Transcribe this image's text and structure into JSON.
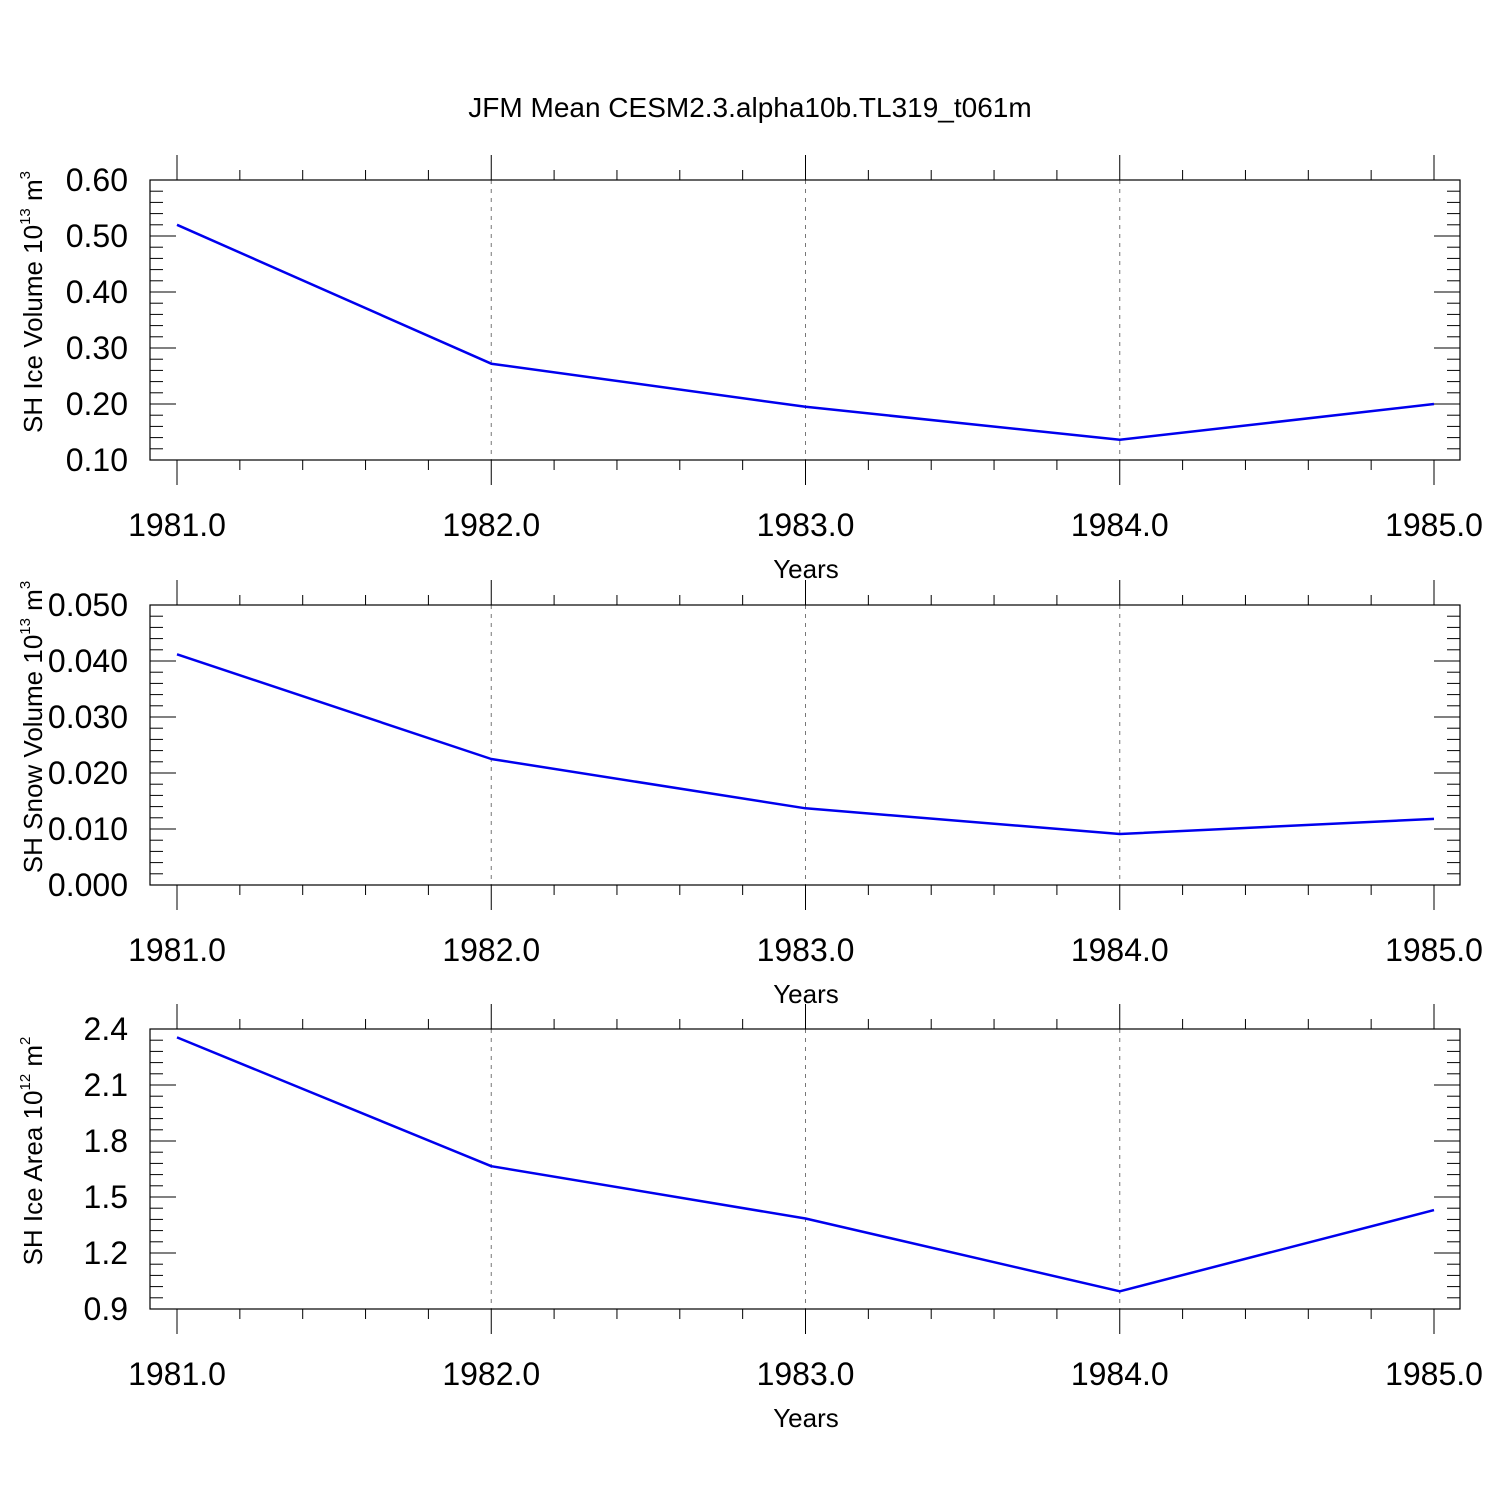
{
  "title": "JFM Mean CESM2.3.alpha10b.TL319_t061m",
  "colors": {
    "series": "#0000ee",
    "axes": "#000000",
    "grid": "#777777"
  },
  "chart_data": [
    {
      "type": "line",
      "x": [
        1981.0,
        1982.0,
        1983.0,
        1984.0,
        1985.0
      ],
      "y": [
        0.52,
        0.272,
        0.195,
        0.136,
        0.2
      ],
      "xlim": [
        1981.0,
        1985.0
      ],
      "ylim": [
        0.1,
        0.6
      ],
      "xticks": [
        "1981.0",
        "1982.0",
        "1983.0",
        "1984.0",
        "1985.0"
      ],
      "yticks": [
        "0.10",
        "0.20",
        "0.30",
        "0.40",
        "0.50",
        "0.60"
      ],
      "xlabel": "Years",
      "ylabel_main": "SH Ice Volume 10",
      "ylabel_exp": "13",
      "ylabel_unit": "m",
      "ylabel_unit_exp": "3",
      "grid": "vertical dashed at major x ticks"
    },
    {
      "type": "line",
      "x": [
        1981.0,
        1982.0,
        1983.0,
        1984.0,
        1985.0
      ],
      "y": [
        0.0412,
        0.0225,
        0.0137,
        0.0091,
        0.0118
      ],
      "xlim": [
        1981.0,
        1985.0
      ],
      "ylim": [
        0.0,
        0.05
      ],
      "xticks": [
        "1981.0",
        "1982.0",
        "1983.0",
        "1984.0",
        "1985.0"
      ],
      "yticks": [
        "0.000",
        "0.010",
        "0.020",
        "0.030",
        "0.040",
        "0.050"
      ],
      "xlabel": "Years",
      "ylabel_main": "SH Snow Volume 10",
      "ylabel_exp": "13",
      "ylabel_unit": "m",
      "ylabel_unit_exp": "3",
      "grid": "vertical dashed at major x ticks"
    },
    {
      "type": "line",
      "x": [
        1981.0,
        1982.0,
        1983.0,
        1984.0,
        1985.0
      ],
      "y": [
        2.355,
        1.665,
        1.385,
        0.995,
        1.43
      ],
      "xlim": [
        1981.0,
        1985.0
      ],
      "ylim": [
        0.9,
        2.4
      ],
      "xticks": [
        "1981.0",
        "1982.0",
        "1983.0",
        "1984.0",
        "1985.0"
      ],
      "yticks": [
        "0.9",
        "1.2",
        "1.5",
        "1.8",
        "2.1",
        "2.4"
      ],
      "xlabel": "Years",
      "ylabel_main": "SH Ice Area 10",
      "ylabel_exp": "12",
      "ylabel_unit": "m",
      "ylabel_unit_exp": "2",
      "grid": "vertical dashed at major x ticks"
    }
  ]
}
